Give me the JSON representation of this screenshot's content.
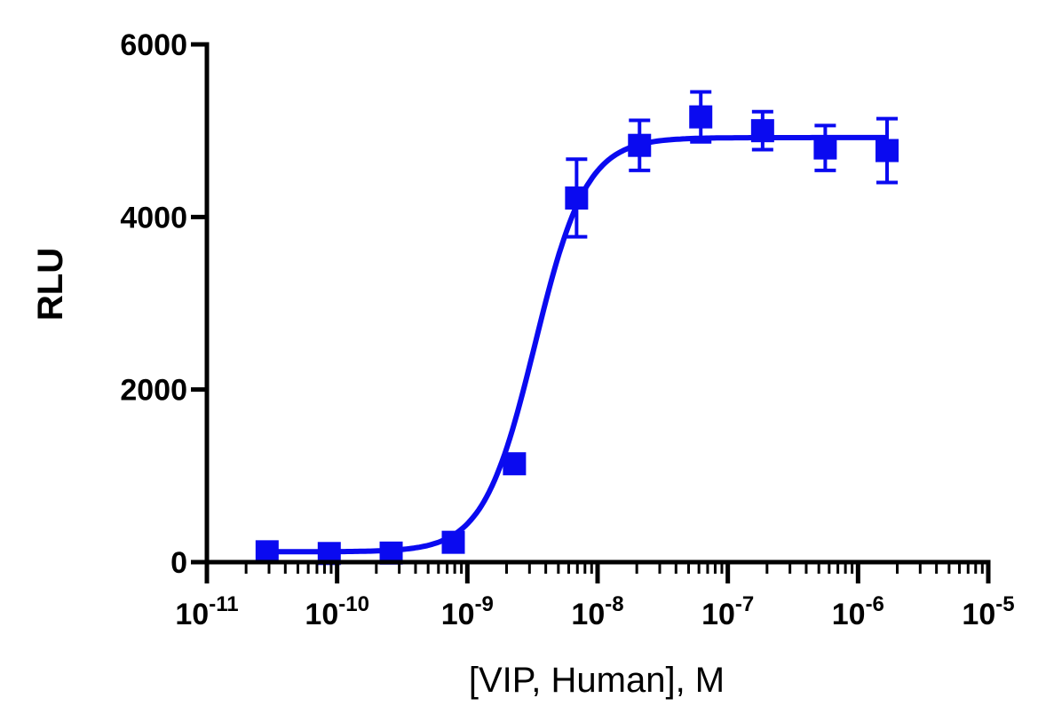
{
  "chart_data": {
    "type": "scatter",
    "title": "",
    "xlabel": "[VIP, Human], M",
    "ylabel": "RLU",
    "x_scale": "log",
    "xlim": [
      1e-11,
      1e-05
    ],
    "ylim": [
      0,
      6000
    ],
    "y_ticks": [
      0,
      2000,
      4000,
      6000
    ],
    "y_tick_labels": [
      "0",
      "2000",
      "4000",
      "6000"
    ],
    "x_ticks": [
      1e-11,
      1e-10,
      1e-09,
      1e-08,
      1e-07,
      1e-06,
      1e-05
    ],
    "x_tick_labels": [
      {
        "base": "10",
        "exp": "-11"
      },
      {
        "base": "10",
        "exp": "-10"
      },
      {
        "base": "10",
        "exp": "-9"
      },
      {
        "base": "10",
        "exp": "-8"
      },
      {
        "base": "10",
        "exp": "-7"
      },
      {
        "base": "10",
        "exp": "-6"
      },
      {
        "base": "10",
        "exp": "-5"
      }
    ],
    "grid": false,
    "legend": "none",
    "series": [
      {
        "color": "#0a0af0",
        "marker": "square",
        "points": [
          {
            "x": 2.9e-11,
            "y": 120,
            "err": 40
          },
          {
            "x": 8.7e-11,
            "y": 100,
            "err": 40
          },
          {
            "x": 2.6e-10,
            "y": 105,
            "err": 40
          },
          {
            "x": 7.8e-10,
            "y": 230,
            "err": 50
          },
          {
            "x": 2.3e-09,
            "y": 1140,
            "err": 60
          },
          {
            "x": 6.9e-09,
            "y": 4220,
            "err": 450
          },
          {
            "x": 2.1e-08,
            "y": 4830,
            "err": 290
          },
          {
            "x": 6.2e-08,
            "y": 5160,
            "err": 290
          },
          {
            "x": 1.85e-07,
            "y": 5000,
            "err": 220
          },
          {
            "x": 5.6e-07,
            "y": 4800,
            "err": 260
          },
          {
            "x": 1.67e-06,
            "y": 4770,
            "err": 370
          }
        ],
        "fit": {
          "model": "four-parameter-logistic",
          "bottom": 120,
          "top": 4920,
          "ec50": 3.3e-09,
          "hill": 2.2,
          "x_range": [
            2.9e-11,
            1.67e-06
          ]
        }
      }
    ]
  }
}
